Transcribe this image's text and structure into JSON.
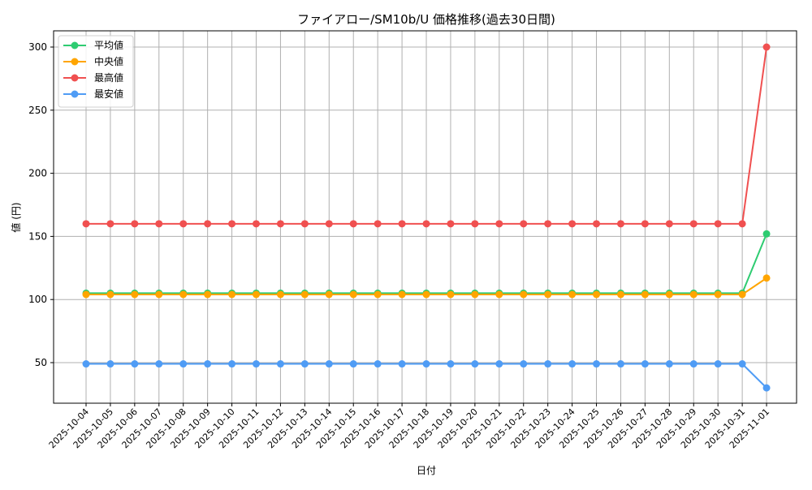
{
  "chart_data": {
    "type": "line",
    "title": "ファイアロー/SM10b/U 価格推移(過去30日間)",
    "xlabel": "日付",
    "ylabel": "値 (円)",
    "ylim": [
      18,
      313
    ],
    "yticks": [
      50,
      100,
      150,
      200,
      250,
      300
    ],
    "grid": true,
    "legend_position": "upper left",
    "categories": [
      "2025-10-04",
      "2025-10-05",
      "2025-10-06",
      "2025-10-07",
      "2025-10-08",
      "2025-10-09",
      "2025-10-10",
      "2025-10-11",
      "2025-10-12",
      "2025-10-13",
      "2025-10-14",
      "2025-10-15",
      "2025-10-16",
      "2025-10-17",
      "2025-10-18",
      "2025-10-19",
      "2025-10-20",
      "2025-10-21",
      "2025-10-22",
      "2025-10-23",
      "2025-10-24",
      "2025-10-25",
      "2025-10-26",
      "2025-10-27",
      "2025-10-28",
      "2025-10-29",
      "2025-10-30",
      "2025-10-31",
      "2025-11-01"
    ],
    "series": [
      {
        "name": "平均値",
        "color": "#2ecc71",
        "values": [
          105,
          105,
          105,
          105,
          105,
          105,
          105,
          105,
          105,
          105,
          105,
          105,
          105,
          105,
          105,
          105,
          105,
          105,
          105,
          105,
          105,
          105,
          105,
          105,
          105,
          105,
          105,
          105,
          152
        ]
      },
      {
        "name": "中央値",
        "color": "#ffa500",
        "values": [
          104,
          104,
          104,
          104,
          104,
          104,
          104,
          104,
          104,
          104,
          104,
          104,
          104,
          104,
          104,
          104,
          104,
          104,
          104,
          104,
          104,
          104,
          104,
          104,
          104,
          104,
          104,
          104,
          117
        ]
      },
      {
        "name": "最高値",
        "color": "#f05050",
        "values": [
          160,
          160,
          160,
          160,
          160,
          160,
          160,
          160,
          160,
          160,
          160,
          160,
          160,
          160,
          160,
          160,
          160,
          160,
          160,
          160,
          160,
          160,
          160,
          160,
          160,
          160,
          160,
          160,
          300
        ]
      },
      {
        "name": "最安値",
        "color": "#4f9cf5",
        "values": [
          49,
          49,
          49,
          49,
          49,
          49,
          49,
          49,
          49,
          49,
          49,
          49,
          49,
          49,
          49,
          49,
          49,
          49,
          49,
          49,
          49,
          49,
          49,
          49,
          49,
          49,
          49,
          49,
          30
        ]
      }
    ]
  }
}
